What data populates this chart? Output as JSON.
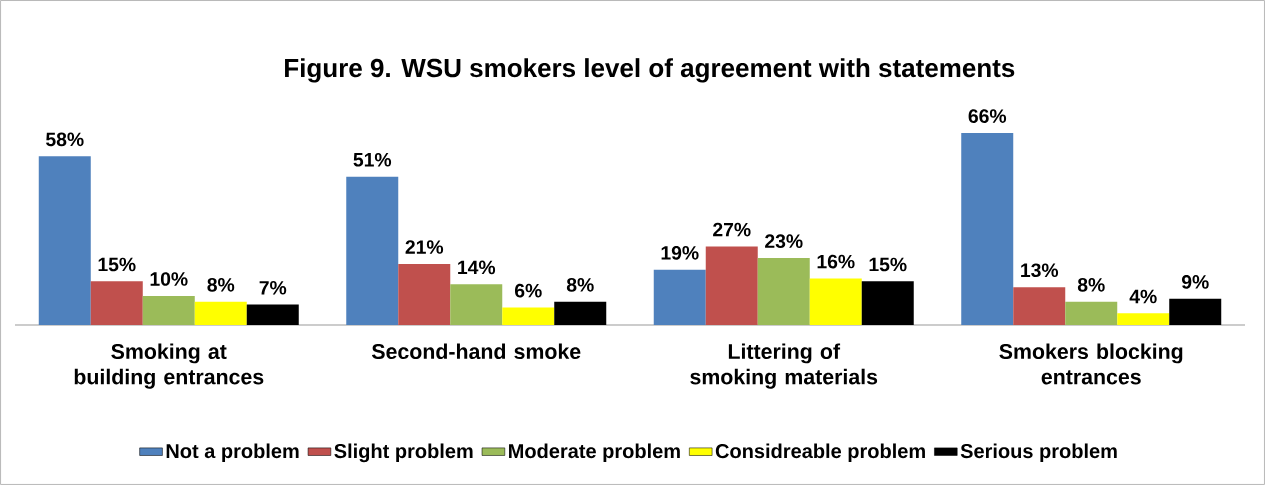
{
  "chart_data": {
    "type": "bar",
    "title": "Figure 9.  WSU smokers level of agreement with statements",
    "categories": [
      "Smoking at building entrances",
      "Second-hand smoke",
      "Littering of smoking materials",
      "Smokers blocking entrances"
    ],
    "series": [
      {
        "name": "Not a problem",
        "color": "#4f81bd",
        "values": [
          58,
          51,
          19,
          66
        ],
        "value_labels": [
          "58%",
          "51%",
          "19%",
          "66%"
        ]
      },
      {
        "name": "Slight problem",
        "color": "#c0504d",
        "values": [
          15,
          21,
          27,
          13
        ],
        "value_labels": [
          "15%",
          "21%",
          "27%",
          "13%"
        ]
      },
      {
        "name": "Moderate problem",
        "color": "#9bbb59",
        "values": [
          10,
          14,
          23,
          8
        ],
        "value_labels": [
          "10%",
          "14%",
          "23%",
          "8%"
        ]
      },
      {
        "name": "Considreable problem",
        "color": "#ffff00",
        "values": [
          8,
          6,
          16,
          4
        ],
        "value_labels": [
          "8%",
          "6%",
          "16%",
          "4%"
        ]
      },
      {
        "name": "Serious problem",
        "color": "#000000",
        "values": [
          7,
          8,
          15,
          9
        ],
        "value_labels": [
          "7%",
          "8%",
          "15%",
          "9%"
        ]
      }
    ],
    "data_labels": true,
    "legend": "bottom"
  }
}
